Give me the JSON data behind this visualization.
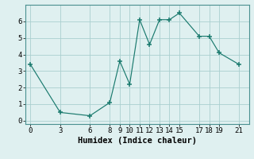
{
  "x": [
    0,
    3,
    6,
    8,
    9,
    10,
    11,
    12,
    13,
    14,
    15,
    17,
    18,
    19,
    21
  ],
  "y": [
    3.4,
    0.5,
    0.3,
    1.1,
    3.6,
    2.2,
    6.1,
    4.6,
    6.1,
    6.1,
    6.5,
    5.1,
    5.1,
    4.1,
    3.4
  ],
  "title": "",
  "xlabel": "Humidex (Indice chaleur)",
  "ylabel": "",
  "xlim": [
    -0.5,
    22
  ],
  "ylim": [
    -0.2,
    7
  ],
  "xticks": [
    0,
    3,
    6,
    8,
    9,
    10,
    11,
    12,
    13,
    14,
    15,
    17,
    18,
    19,
    21
  ],
  "yticks": [
    0,
    1,
    2,
    3,
    4,
    5,
    6
  ],
  "line_color": "#1a7a6e",
  "marker": "+",
  "bg_color": "#dff0f0",
  "grid_color": "#aacfcf",
  "label_fontsize": 7.5,
  "tick_fontsize": 6.5
}
